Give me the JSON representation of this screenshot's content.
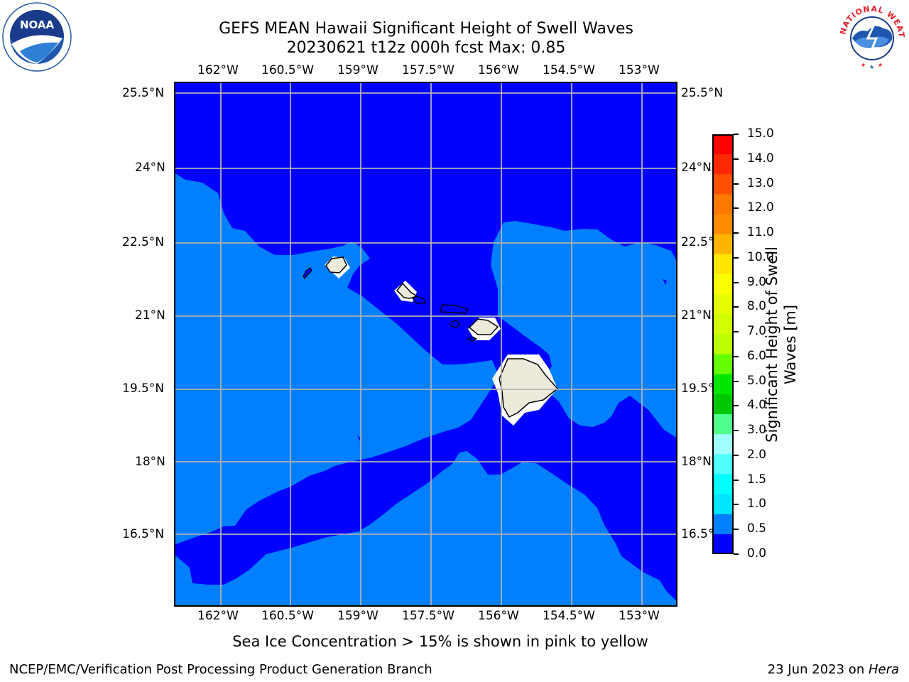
{
  "title_line1": "GEFS MEAN Hawaii Significant Height of Swell Waves",
  "title_line2": "20230621 t12z 000h fcst   Max: 0.85",
  "map": {
    "lon_labels": [
      "162°W",
      "160.5°W",
      "159°W",
      "157.5°W",
      "156°W",
      "154.5°W",
      "153°W"
    ],
    "lat_labels": [
      "25.5°N",
      "24°N",
      "22.5°N",
      "21°N",
      "19.5°N",
      "18°N",
      "16.5°N"
    ],
    "ocean_low_color": "#0000ff",
    "ocean_mid_color": "#0080ff",
    "land_color": "#eeeadb",
    "grid_color": "#b0b0b0"
  },
  "colorbar": {
    "label": "Significant Height of Swell Waves [m]",
    "ticks": [
      "15.0",
      "14.0",
      "13.0",
      "12.0",
      "11.0",
      "10.0",
      "9.0",
      "8.0",
      "7.0",
      "6.0",
      "5.0",
      "4.0",
      "3.0",
      "2.0",
      "1.5",
      "1.0",
      "0.5",
      "0.0"
    ],
    "colors_top_to_bottom": [
      "#ff0000",
      "#ff2800",
      "#ff5000",
      "#ff7800",
      "#ff8c00",
      "#ffb400",
      "#ffe600",
      "#fcff00",
      "#e6ff00",
      "#d2ff00",
      "#bcff00",
      "#64ff00",
      "#00e600",
      "#00c800",
      "#50ff8c",
      "#a0ffff",
      "#50ffff",
      "#00ffff",
      "#00e6ff",
      "#0080ff",
      "#0000ff"
    ]
  },
  "note": "Sea Ice Concentration > 15% is shown in pink to yellow",
  "footer_left": "NCEP/EMC/Verification Post Processing Product Generation Branch",
  "footer_right_date": "23 Jun 2023 on ",
  "footer_right_host": "Hera",
  "logos": {
    "left_text": "NOAA",
    "right_text": "NATIONAL WEATHER SERVICE"
  }
}
